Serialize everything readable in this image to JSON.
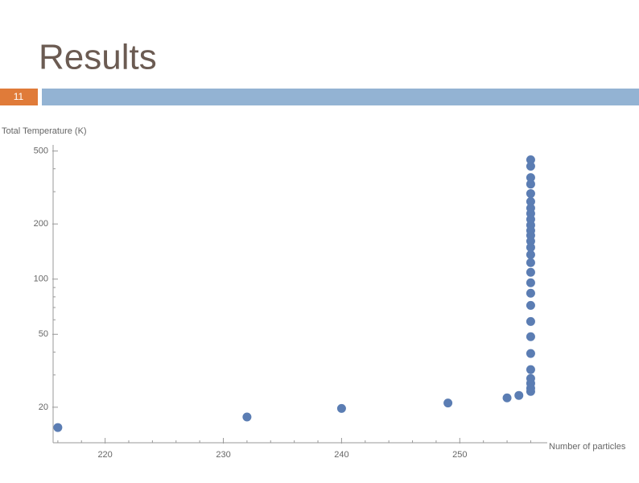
{
  "slide": {
    "title": "Results",
    "number": "11"
  },
  "chart_data": {
    "type": "scatter",
    "y_label": "Total Temperature (K)",
    "x_label": "Number of particles",
    "color": "#5b7db3",
    "log_y": true,
    "xlim": [
      215.6,
      257.4
    ],
    "xticks": [
      220,
      230,
      240,
      250
    ],
    "xminorticks": [
      216,
      218,
      222,
      224,
      226,
      228,
      232,
      234,
      236,
      238,
      242,
      244,
      246,
      248,
      252,
      254,
      256
    ],
    "ylim": [
      12.8,
      540
    ],
    "yticks": [
      20,
      50,
      100,
      200,
      500
    ],
    "yminorticks": [
      30,
      40,
      60,
      70,
      80,
      90,
      300,
      400
    ],
    "x": [
      216,
      232,
      240,
      249,
      254,
      255,
      256,
      256,
      256,
      256,
      256,
      256,
      256,
      256,
      256,
      256,
      256,
      256,
      256,
      256,
      256,
      256,
      256,
      256,
      256,
      256,
      256,
      256,
      256,
      256,
      256,
      256,
      256,
      256
    ],
    "y": [
      15.5,
      17.7,
      19.7,
      21.1,
      22.5,
      23.2,
      448,
      413,
      358,
      330,
      293,
      265,
      244,
      228,
      212,
      197,
      184,
      173,
      161,
      149,
      136,
      123,
      109,
      95.5,
      83.8,
      71.9,
      58.7,
      48.5,
      39.3,
      32.1,
      28.7,
      27.0,
      25.4,
      24.4
    ]
  }
}
